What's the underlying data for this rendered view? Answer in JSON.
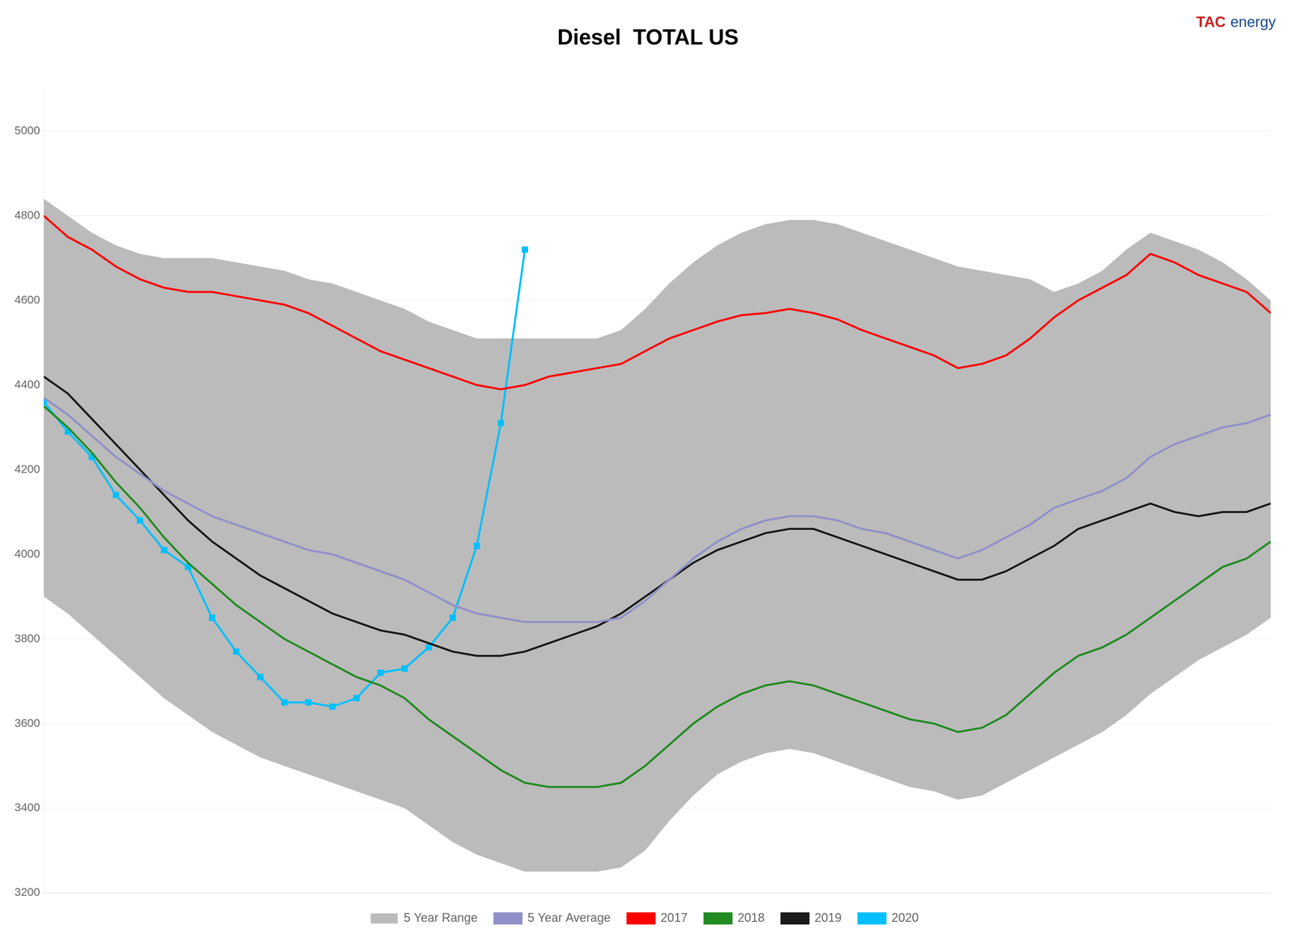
{
  "chart_data": {
    "type": "line",
    "title": "Diesel  TOTAL US",
    "annotations": [
      {
        "text": "TAC",
        "color": "#cc2222"
      },
      {
        "text": "energy",
        "color": "#1a5090"
      }
    ],
    "x": [
      1,
      2,
      3,
      4,
      5,
      6,
      7,
      8,
      9,
      10,
      11,
      12,
      13,
      14,
      15,
      16,
      17,
      18,
      19,
      20,
      21,
      22,
      23,
      24,
      25,
      26,
      27,
      28,
      29,
      30,
      31,
      32,
      33,
      34,
      35,
      36,
      37,
      38,
      39,
      40,
      41,
      42,
      43,
      44,
      45,
      46,
      47,
      48,
      49,
      50,
      51,
      52
    ],
    "xlim": [
      1,
      52
    ],
    "ylim": [
      3200,
      5100
    ],
    "yticks": [
      3200,
      3400,
      3600,
      3800,
      4000,
      4200,
      4400,
      4600,
      4800,
      5000
    ],
    "grid": true,
    "legend": "bottom",
    "tick_labels": "y",
    "series": [
      {
        "name": "5 Year Range",
        "type": "area",
        "color": "#bbbbbb",
        "lower": [
          3900,
          3860,
          3810,
          3760,
          3710,
          3660,
          3620,
          3580,
          3550,
          3520,
          3500,
          3480,
          3460,
          3440,
          3420,
          3400,
          3360,
          3320,
          3290,
          3270,
          3250,
          3250,
          3250,
          3250,
          3260,
          3300,
          3370,
          3430,
          3480,
          3510,
          3530,
          3540,
          3530,
          3510,
          3490,
          3470,
          3450,
          3440,
          3420,
          3430,
          3460,
          3490,
          3520,
          3550,
          3580,
          3620,
          3670,
          3710,
          3750,
          3780,
          3810,
          3850
        ],
        "upper": [
          4840,
          4800,
          4760,
          4730,
          4710,
          4700,
          4700,
          4700,
          4690,
          4680,
          4670,
          4650,
          4640,
          4620,
          4600,
          4580,
          4550,
          4530,
          4510,
          4510,
          4510,
          4510,
          4510,
          4510,
          4530,
          4580,
          4640,
          4690,
          4730,
          4760,
          4780,
          4790,
          4790,
          4780,
          4760,
          4740,
          4720,
          4700,
          4680,
          4670,
          4660,
          4650,
          4620,
          4640,
          4670,
          4720,
          4760,
          4740,
          4720,
          4690,
          4650,
          4600
        ]
      },
      {
        "name": "5 Year Average",
        "type": "line",
        "color": "#9090c8",
        "values": [
          4370,
          4330,
          4280,
          4230,
          4190,
          4150,
          4120,
          4090,
          4070,
          4050,
          4030,
          4010,
          4000,
          3980,
          3960,
          3940,
          3910,
          3880,
          3860,
          3850,
          3840,
          3840,
          3840,
          3840,
          3850,
          3890,
          3940,
          3990,
          4030,
          4060,
          4080,
          4090,
          4090,
          4080,
          4060,
          4050,
          4030,
          4010,
          3990,
          4010,
          4040,
          4070,
          4110,
          4130,
          4150,
          4180,
          4230,
          4260,
          4280,
          4300,
          4310,
          4330
        ]
      },
      {
        "name": "2017",
        "type": "line",
        "color": "#ff0000",
        "values": [
          4800,
          4750,
          4720,
          4680,
          4650,
          4630,
          4620,
          4620,
          4610,
          4600,
          4590,
          4570,
          4540,
          4510,
          4480,
          4460,
          4440,
          4420,
          4400,
          4390,
          4400,
          4420,
          4430,
          4440,
          4450,
          4480,
          4510,
          4530,
          4550,
          4565,
          4570,
          4580,
          4570,
          4555,
          4530,
          4510,
          4490,
          4470,
          4440,
          4450,
          4470,
          4510,
          4560,
          4600,
          4630,
          4660,
          4710,
          4690,
          4660,
          4640,
          4620,
          4570
        ]
      },
      {
        "name": "2018",
        "type": "line",
        "color": "#228B22",
        "values": [
          4350,
          4300,
          4240,
          4170,
          4110,
          4040,
          3980,
          3930,
          3880,
          3840,
          3800,
          3770,
          3740,
          3710,
          3690,
          3660,
          3610,
          3570,
          3530,
          3490,
          3460,
          3450,
          3450,
          3450,
          3460,
          3500,
          3550,
          3600,
          3640,
          3670,
          3690,
          3700,
          3690,
          3670,
          3650,
          3630,
          3610,
          3600,
          3580,
          3590,
          3620,
          3670,
          3720,
          3760,
          3780,
          3810,
          3850,
          3890,
          3930,
          3970,
          3990,
          4030
        ]
      },
      {
        "name": "2019",
        "type": "line",
        "color": "#1a1a1a",
        "values": [
          4420,
          4380,
          4320,
          4260,
          4200,
          4140,
          4080,
          4030,
          3990,
          3950,
          3920,
          3890,
          3860,
          3840,
          3820,
          3810,
          3790,
          3770,
          3760,
          3760,
          3770,
          3790,
          3810,
          3830,
          3860,
          3900,
          3940,
          3980,
          4010,
          4030,
          4050,
          4060,
          4060,
          4040,
          4020,
          4000,
          3980,
          3960,
          3940,
          3940,
          3960,
          3990,
          4020,
          4060,
          4080,
          4100,
          4120,
          4100,
          4090,
          4100,
          4100,
          4120
        ]
      },
      {
        "name": "2020",
        "type": "line",
        "color": "#00bfff",
        "marker": "square",
        "values": [
          4360,
          4290,
          4230,
          4140,
          4080,
          4010,
          3970,
          3850,
          3770,
          3710,
          3650,
          3650,
          3640,
          3660,
          3720,
          3730,
          3780,
          3850,
          4020,
          4310,
          4720,
          null,
          null,
          null,
          null,
          null,
          null,
          null,
          null,
          null,
          null,
          null,
          null,
          null,
          null,
          null,
          null,
          null,
          null,
          null,
          null,
          null,
          null,
          null,
          null,
          null,
          null,
          null,
          null,
          null,
          null,
          null
        ]
      }
    ]
  }
}
